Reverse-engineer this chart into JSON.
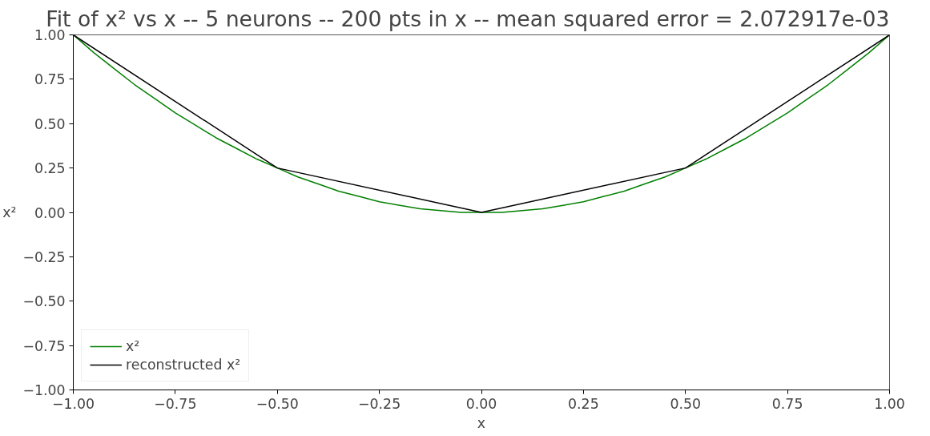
{
  "chart_data": {
    "type": "line",
    "title": "Fit of x² vs x -- 5 neurons -- 200 pts in x -- mean squared error = 2.072917e-03",
    "xlabel": "x",
    "ylabel": "x²",
    "xlim": [
      -1,
      1
    ],
    "ylim": [
      -1,
      1
    ],
    "xticks": [
      {
        "value": -1,
        "label": "−1.00"
      },
      {
        "value": -0.75,
        "label": "−0.75"
      },
      {
        "value": -0.5,
        "label": "−0.50"
      },
      {
        "value": -0.25,
        "label": "−0.25"
      },
      {
        "value": 0,
        "label": "0.00"
      },
      {
        "value": 0.25,
        "label": "0.25"
      },
      {
        "value": 0.5,
        "label": "0.50"
      },
      {
        "value": 0.75,
        "label": "0.75"
      },
      {
        "value": 1,
        "label": "1.00"
      }
    ],
    "yticks": [
      {
        "value": -1,
        "label": "−1.00"
      },
      {
        "value": -0.75,
        "label": "−0.75"
      },
      {
        "value": -0.5,
        "label": "−0.50"
      },
      {
        "value": -0.25,
        "label": "−0.25"
      },
      {
        "value": 0,
        "label": "0.00"
      },
      {
        "value": 0.25,
        "label": "0.25"
      },
      {
        "value": 0.5,
        "label": "0.50"
      },
      {
        "value": 0.75,
        "label": "0.75"
      },
      {
        "value": 1,
        "label": "1.00"
      }
    ],
    "grid": false,
    "legend": "bottom left",
    "marker": "none",
    "line_style": "solid",
    "series": [
      {
        "name": "x²",
        "color": "#008000",
        "x": [
          -1,
          -0.95,
          -0.9,
          -0.85,
          -0.8,
          -0.75,
          -0.7,
          -0.65,
          -0.6,
          -0.55,
          -0.5,
          -0.45,
          -0.4,
          -0.35,
          -0.3,
          -0.25,
          -0.2,
          -0.15,
          -0.1,
          -0.05,
          0,
          0.05,
          0.1,
          0.15,
          0.2,
          0.25,
          0.3,
          0.35,
          0.4,
          0.45,
          0.5,
          0.55,
          0.6,
          0.65,
          0.7,
          0.75,
          0.8,
          0.85,
          0.9,
          0.95,
          1
        ],
        "values": [
          1,
          0.9,
          0.81,
          0.72,
          0.64,
          0.56,
          0.49,
          0.42,
          0.36,
          0.3,
          0.25,
          0.2,
          0.16,
          0.12,
          0.09,
          0.06,
          0.04,
          0.02,
          0.01,
          0,
          0,
          0,
          0.01,
          0.02,
          0.04,
          0.06,
          0.09,
          0.12,
          0.16,
          0.2,
          0.25,
          0.3,
          0.36,
          0.42,
          0.49,
          0.56,
          0.64,
          0.72,
          0.81,
          0.9,
          1
        ]
      },
      {
        "name": "reconstructed x²",
        "color": "#000000",
        "x": [
          -1,
          -0.5,
          0,
          0.5,
          1
        ],
        "values": [
          1,
          0.25,
          0,
          0.25,
          1
        ]
      }
    ]
  }
}
